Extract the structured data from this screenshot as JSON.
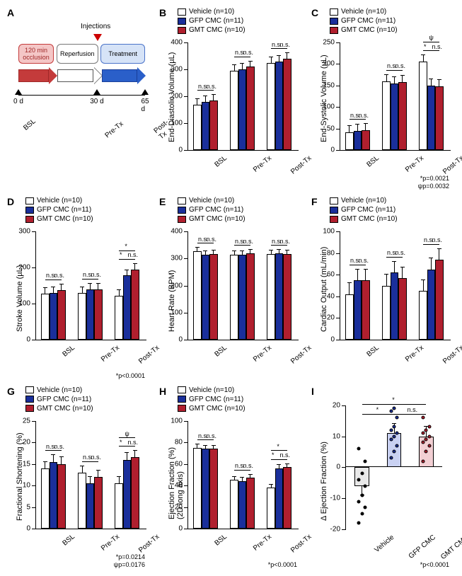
{
  "colors": {
    "vehicle": "#ffffff",
    "gfp": "#1a2f9b",
    "gmt": "#b01f2e",
    "black": "#000000",
    "occlusion_fill": "#f4c6c6",
    "occlusion_border": "#c43b3b",
    "reperfusion_fill": "#ffffff",
    "reperfusion_border": "#777777",
    "treatment_fill": "#d6e3f7",
    "treatment_border": "#4a73c9",
    "panelI_vehicle_fill": "#e8e8e8",
    "panelI_gfp_fill": "#c9d1f2",
    "panelI_gmt_fill": "#f2cfd3"
  },
  "legend": {
    "vehicle": "Vehicle (n=10)",
    "gfp": "GFP CMC (n=11)",
    "gmt": "GMT CMC (n=10)"
  },
  "panelA": {
    "label": "A",
    "injections": "Injections",
    "occlusion": "120 min\nocclusion",
    "reperfusion": "Reperfusion",
    "treatment": "Treatment",
    "timepoints": [
      "0 d",
      "30 d",
      "65 d"
    ],
    "sublabels": [
      "BSL",
      "Pre-Tx",
      "Post-Tx"
    ]
  },
  "x_categories": [
    "BSL",
    "Pre-Tx",
    "Post-Tx"
  ],
  "panels": {
    "B": {
      "ylabel": "End-Diastolic Volume (µL)",
      "ymax": 400,
      "ystep": 100,
      "groups": [
        {
          "v": 170,
          "g": 180,
          "m": 185,
          "sig": [
            "n.s.",
            "n.s."
          ]
        },
        {
          "v": 295,
          "g": 300,
          "m": 310,
          "sig": [
            "n.s.",
            "n.s."
          ]
        },
        {
          "v": 325,
          "g": 330,
          "m": 340,
          "sig": [
            "n.s.",
            "n.s."
          ]
        }
      ],
      "err": 20
    },
    "C": {
      "ylabel": "End-Systolic Volume (µL)",
      "ymax": 250,
      "ystep": 50,
      "groups": [
        {
          "v": 42,
          "g": 45,
          "m": 46,
          "sig": [
            "n.s.",
            "n.s."
          ]
        },
        {
          "v": 160,
          "g": 155,
          "m": 158,
          "sig": [
            "n.s.",
            "n.s."
          ]
        },
        {
          "v": 205,
          "g": 150,
          "m": 148,
          "sig": [
            "*",
            "n.s."
          ],
          "extra": "ψ"
        }
      ],
      "err": 15,
      "pnote": "*p=0.0021\nψp=0.0032"
    },
    "D": {
      "ylabel": "Stroke Volume (µL)",
      "ymax": 300,
      "ystep": 100,
      "groups": [
        {
          "v": 128,
          "g": 130,
          "m": 138,
          "sig": [
            "n.s.",
            "n.s."
          ]
        },
        {
          "v": 130,
          "g": 140,
          "m": 140,
          "sig": [
            "n.s.",
            "n.s."
          ]
        },
        {
          "v": 122,
          "g": 178,
          "m": 195,
          "sig": [
            "*",
            "n.s."
          ],
          "extra": "*"
        }
      ],
      "err": 15,
      "pnote": "*p<0.0001"
    },
    "E": {
      "ylabel": "Heart Rate (BPM)",
      "ymax": 400,
      "ystep": 100,
      "groups": [
        {
          "v": 328,
          "g": 315,
          "m": 318,
          "sig": [
            "n.s.",
            "n.s."
          ]
        },
        {
          "v": 315,
          "g": 315,
          "m": 320,
          "sig": [
            "n.s.",
            "n.s."
          ]
        },
        {
          "v": 318,
          "g": 320,
          "m": 318,
          "sig": [
            "n.s.",
            "n.s."
          ]
        }
      ],
      "err": 12
    },
    "F": {
      "ylabel": "Cardiac Output (mL/min)",
      "ymax": 100,
      "ystep": 20,
      "groups": [
        {
          "v": 42,
          "g": 55,
          "m": 55,
          "sig": [
            "n.s.",
            "n.s."
          ]
        },
        {
          "v": 50,
          "g": 62,
          "m": 57,
          "sig": [
            "n.s.",
            "n.s."
          ]
        },
        {
          "v": 45,
          "g": 65,
          "m": 74,
          "sig": [
            "n.s.",
            "n.s."
          ]
        }
      ],
      "err": 10
    },
    "G": {
      "ylabel": "Fractional Shortening (%)",
      "ymax": 25,
      "ystep": 5,
      "groups": [
        {
          "v": 14,
          "g": 15.5,
          "m": 15,
          "sig": [
            "n.s.",
            "n.s."
          ]
        },
        {
          "v": 13,
          "g": 10.5,
          "m": 12,
          "sig": [
            "n.s.",
            "n.s."
          ]
        },
        {
          "v": 10.5,
          "g": 16,
          "m": 16.5,
          "sig": [
            "*",
            "n.s."
          ],
          "extra": "ψ"
        }
      ],
      "err": 1.5,
      "pnote": "*p=0.0214\nψp=0.0176"
    },
    "H": {
      "ylabel": "Ejection Fraction (%)\n(2D long axis)",
      "ymax": 100,
      "ystep": 20,
      "groups": [
        {
          "v": 75,
          "g": 74,
          "m": 74,
          "sig": [
            "n.s.",
            "n.s."
          ]
        },
        {
          "v": 45,
          "g": 44,
          "m": 47,
          "sig": [
            "n.s.",
            "n.s."
          ]
        },
        {
          "v": 38,
          "g": 56,
          "m": 57,
          "sig": [
            "*",
            "n.s."
          ],
          "extra": "*"
        }
      ],
      "err": 3,
      "pnote": "*p<0.0001"
    }
  },
  "panelI": {
    "label": "I",
    "ylabel": "Δ Ejection Fraction (%)",
    "ymin": -20,
    "ymax": 20,
    "ystep": 10,
    "cats": [
      "Vehicle",
      "GFP CMC",
      "GMT CMC"
    ],
    "means": [
      -6,
      11,
      10
    ],
    "err": 3,
    "dots": {
      "Vehicle": [
        -18,
        -15,
        -13,
        -11,
        -9,
        -6,
        -4,
        -2,
        2,
        6
      ],
      "GFP CMC": [
        3,
        5,
        7,
        9,
        10,
        11,
        12,
        13,
        16,
        18,
        19
      ],
      "GMT CMC": [
        2,
        5,
        7,
        8,
        9,
        10,
        11,
        12,
        13,
        16
      ]
    },
    "sig": [
      "*",
      "n.s."
    ],
    "extra": "*",
    "pnote": "*p<0.0001"
  }
}
